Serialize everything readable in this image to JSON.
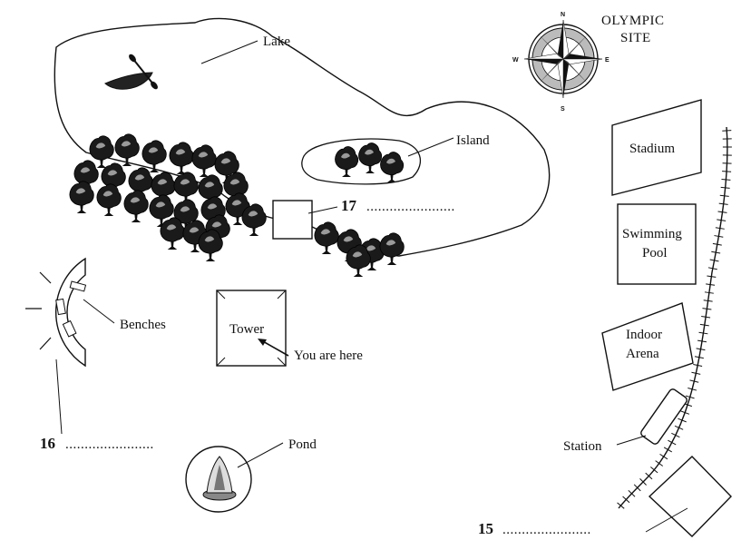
{
  "map": {
    "title_line1": "OLYMPIC",
    "title_line2": "SITE",
    "compass": {
      "n": "N",
      "e": "E",
      "s": "S",
      "w": "W"
    },
    "labels": {
      "lake": "Lake",
      "island": "Island",
      "benches": "Benches",
      "tower": "Tower",
      "you_are_here": "You are here",
      "pond": "Pond",
      "stadium": "Stadium",
      "swimming_pool_line1": "Swimming",
      "swimming_pool_line2": "Pool",
      "indoor_arena_line1": "Indoor",
      "indoor_arena_line2": "Arena",
      "station": "Station"
    },
    "questions": [
      {
        "number": "15",
        "answer_line": "......................."
      },
      {
        "number": "16",
        "answer_line": "......................."
      },
      {
        "number": "17",
        "answer_line": "......................."
      }
    ]
  }
}
